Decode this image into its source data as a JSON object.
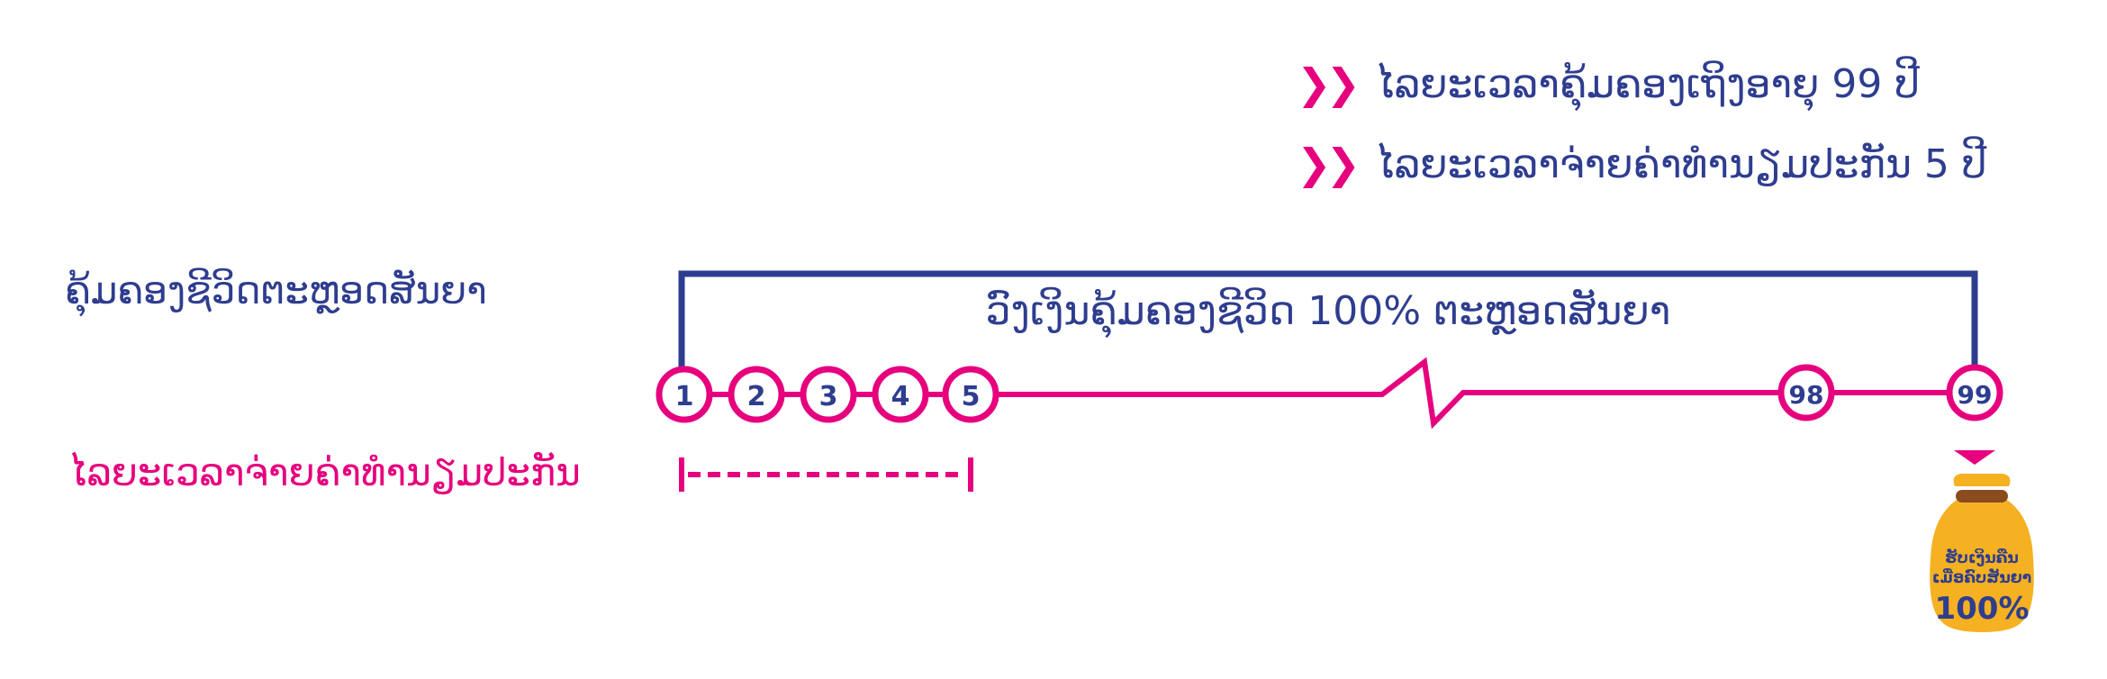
{
  "bullets": [
    {
      "icon": "double-chevron-right-icon",
      "text": "ໄລຍະເວລາຄຸ້ມຄອງເຖິງອາຍຸ 99 ປີ"
    },
    {
      "icon": "double-chevron-right-icon",
      "text": "ໄລຍະເວລາຈ່າຍຄ່າທຳນຽມປະກັນ 5 ປີ"
    }
  ],
  "left_labels": {
    "coverage": "ຄຸ້ມຄອງຊີວິດຕະຫຼອດສັນຍາ",
    "payment": "ໄລຍະເວລາຈ່າຍຄ່າທຳນຽມປະກັນ"
  },
  "coverage_bracket_text": "ວົງເງິນຄຸ້ມຄອງຊີວິດ 100% ຕະຫຼອດສັນຍາ",
  "timeline_nodes": [
    "1",
    "2",
    "3",
    "4",
    "5",
    "98",
    "99"
  ],
  "money_bag": {
    "line1": "ຮັບເງິນຄືນ",
    "line2": "ເມື່ອຄົບສັນຍາ",
    "percent": "100%"
  },
  "colors": {
    "primary_blue": "#2e3d8f",
    "accent_pink": "#e6007e",
    "bag_gold": "#f5b121",
    "bag_tie": "#8a4b1e"
  }
}
